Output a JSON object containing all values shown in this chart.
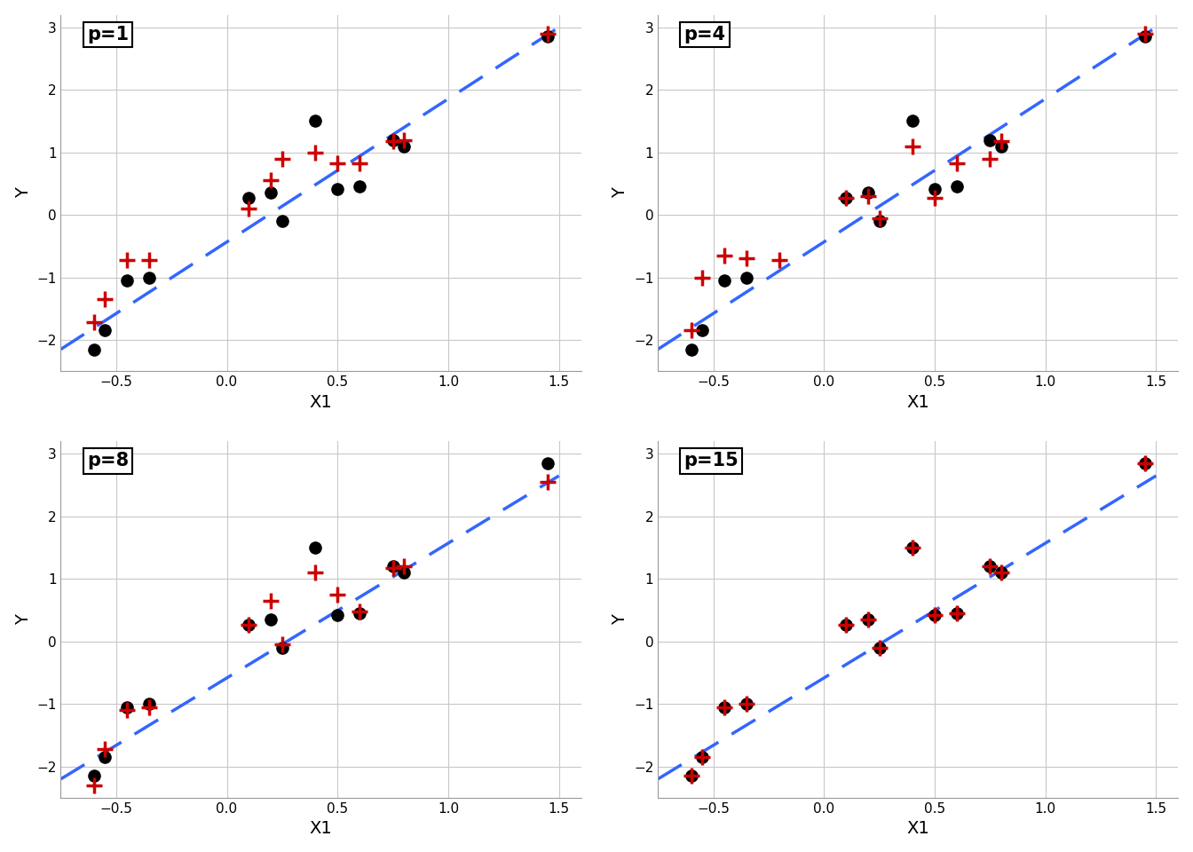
{
  "subplots": [
    {
      "title": "p=1",
      "observed_x": [
        -0.6,
        -0.55,
        -0.45,
        -0.35,
        0.1,
        0.2,
        0.25,
        0.4,
        0.5,
        0.6,
        0.75,
        0.8,
        1.45
      ],
      "observed_y": [
        -2.15,
        -1.85,
        -1.05,
        -1.0,
        0.27,
        0.35,
        -0.1,
        1.5,
        0.42,
        0.45,
        1.2,
        1.1,
        2.85
      ],
      "fitted_x": [
        -0.6,
        -0.55,
        -0.45,
        -0.35,
        0.1,
        0.2,
        0.25,
        0.4,
        0.5,
        0.6,
        0.75,
        0.8,
        1.45
      ],
      "fitted_y": [
        -1.72,
        -1.35,
        -0.72,
        -0.72,
        0.1,
        0.55,
        0.9,
        1.0,
        0.82,
        0.82,
        1.18,
        1.2,
        2.9
      ],
      "line_x": [
        -0.75,
        1.5
      ],
      "line_y": [
        -2.15,
        3.0
      ]
    },
    {
      "title": "p=4",
      "observed_x": [
        -0.6,
        -0.55,
        -0.45,
        -0.35,
        0.1,
        0.2,
        0.25,
        0.4,
        0.5,
        0.6,
        0.75,
        0.8,
        1.45
      ],
      "observed_y": [
        -2.15,
        -1.85,
        -1.05,
        -1.0,
        0.27,
        0.35,
        -0.1,
        1.5,
        0.42,
        0.45,
        1.2,
        1.1,
        2.85
      ],
      "fitted_x": [
        -0.6,
        -0.55,
        -0.45,
        -0.35,
        -0.2,
        0.1,
        0.2,
        0.25,
        0.4,
        0.5,
        0.6,
        0.75,
        0.8,
        1.45
      ],
      "fitted_y": [
        -1.85,
        -1.0,
        -0.65,
        -0.7,
        -0.72,
        0.27,
        0.3,
        -0.05,
        1.1,
        0.27,
        0.82,
        0.9,
        1.18,
        2.9
      ],
      "line_x": [
        -0.75,
        1.5
      ],
      "line_y": [
        -2.15,
        3.0
      ]
    },
    {
      "title": "p=8",
      "observed_x": [
        -0.6,
        -0.55,
        -0.45,
        -0.35,
        0.1,
        0.2,
        0.25,
        0.4,
        0.5,
        0.6,
        0.75,
        0.8,
        1.45
      ],
      "observed_y": [
        -2.15,
        -1.85,
        -1.05,
        -1.0,
        0.27,
        0.35,
        -0.1,
        1.5,
        0.42,
        0.45,
        1.2,
        1.1,
        2.85
      ],
      "fitted_x": [
        -0.6,
        -0.55,
        -0.45,
        -0.35,
        0.1,
        0.2,
        0.25,
        0.4,
        0.5,
        0.6,
        0.75,
        0.8,
        1.45
      ],
      "fitted_y": [
        -2.3,
        -1.72,
        -1.1,
        -1.05,
        0.27,
        0.65,
        -0.05,
        1.1,
        0.75,
        0.48,
        1.18,
        1.2,
        2.55
      ],
      "line_x": [
        -0.75,
        1.5
      ],
      "line_y": [
        -2.2,
        2.65
      ]
    },
    {
      "title": "p=15",
      "observed_x": [
        -0.6,
        -0.55,
        -0.45,
        -0.35,
        0.1,
        0.2,
        0.25,
        0.4,
        0.5,
        0.6,
        0.75,
        0.8,
        1.45
      ],
      "observed_y": [
        -2.15,
        -1.85,
        -1.05,
        -1.0,
        0.27,
        0.35,
        -0.1,
        1.5,
        0.42,
        0.45,
        1.2,
        1.1,
        2.85
      ],
      "fitted_x": [
        -0.6,
        -0.55,
        -0.45,
        -0.35,
        0.1,
        0.2,
        0.25,
        0.4,
        0.5,
        0.6,
        0.75,
        0.8,
        1.45
      ],
      "fitted_y": [
        -2.15,
        -1.85,
        -1.05,
        -1.0,
        0.27,
        0.35,
        -0.1,
        1.5,
        0.42,
        0.45,
        1.2,
        1.1,
        2.85
      ],
      "line_x": [
        -0.75,
        1.5
      ],
      "line_y": [
        -2.2,
        2.65
      ]
    }
  ],
  "xlabel": "X1",
  "ylabel": "Y",
  "xlim": [
    -0.75,
    1.6
  ],
  "ylim": [
    -2.5,
    3.2
  ],
  "xticks": [
    -0.5,
    0.0,
    0.5,
    1.0,
    1.5
  ],
  "yticks": [
    -2,
    -1,
    0,
    1,
    2,
    3
  ],
  "observed_color": "#000000",
  "fitted_color": "#cc0000",
  "line_color": "#3366ff",
  "background_color": "#ffffff",
  "grid_color": "#c8c8c8",
  "title_fontsize": 15,
  "label_fontsize": 14,
  "tick_fontsize": 11
}
